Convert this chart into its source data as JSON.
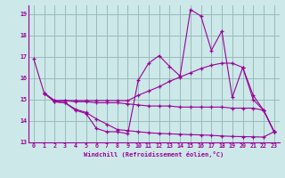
{
  "xlabel": "Windchill (Refroidissement éolien,°C)",
  "background_color": "#cce8e8",
  "grid_color": "#99bbbb",
  "line_color": "#990099",
  "xlim": [
    -0.5,
    23.5
  ],
  "ylim": [
    13.0,
    19.4
  ],
  "yticks": [
    13,
    14,
    15,
    16,
    17,
    18,
    19
  ],
  "xticks": [
    0,
    1,
    2,
    3,
    4,
    5,
    6,
    7,
    8,
    9,
    10,
    11,
    12,
    13,
    14,
    15,
    16,
    17,
    18,
    19,
    20,
    21,
    22,
    23
  ],
  "lines": [
    {
      "x": [
        0,
        1,
        2,
        3,
        4,
        5,
        6,
        7,
        8,
        9,
        10,
        11,
        12,
        13,
        14,
        15,
        16,
        17,
        18,
        19,
        20,
        21,
        22,
        23
      ],
      "y": [
        16.9,
        15.3,
        14.9,
        14.85,
        14.5,
        14.35,
        13.65,
        13.5,
        13.5,
        13.4,
        15.9,
        16.7,
        17.05,
        16.55,
        16.1,
        19.2,
        18.9,
        17.3,
        18.2,
        15.1,
        16.5,
        15.0,
        14.5,
        13.5
      ]
    },
    {
      "x": [
        1,
        2,
        3,
        4,
        5,
        6,
        7,
        8,
        9,
        10,
        11,
        12,
        13,
        14,
        15,
        16,
        17,
        18,
        19,
        20,
        21,
        22,
        23
      ],
      "y": [
        15.3,
        14.95,
        14.95,
        14.95,
        14.95,
        14.95,
        14.95,
        14.95,
        14.95,
        15.2,
        15.4,
        15.6,
        15.85,
        16.05,
        16.25,
        16.45,
        16.6,
        16.7,
        16.7,
        16.5,
        15.2,
        14.5,
        13.5
      ]
    },
    {
      "x": [
        1,
        2,
        3,
        4,
        5,
        6,
        7,
        8,
        9,
        10,
        11,
        12,
        13,
        14,
        15,
        16,
        17,
        18,
        19,
        20,
        21,
        22,
        23
      ],
      "y": [
        15.3,
        14.95,
        14.95,
        14.9,
        14.9,
        14.85,
        14.85,
        14.85,
        14.8,
        14.75,
        14.7,
        14.7,
        14.7,
        14.65,
        14.65,
        14.65,
        14.65,
        14.65,
        14.6,
        14.6,
        14.6,
        14.5,
        13.5
      ]
    },
    {
      "x": [
        1,
        2,
        3,
        4,
        5,
        6,
        7,
        8,
        9,
        10,
        11,
        12,
        13,
        14,
        15,
        16,
        17,
        18,
        19,
        20,
        21,
        22,
        23
      ],
      "y": [
        15.3,
        14.9,
        14.85,
        14.55,
        14.4,
        14.1,
        13.85,
        13.6,
        13.55,
        13.5,
        13.45,
        13.42,
        13.4,
        13.38,
        13.36,
        13.35,
        13.33,
        13.3,
        13.28,
        13.27,
        13.26,
        13.25,
        13.5
      ]
    }
  ]
}
